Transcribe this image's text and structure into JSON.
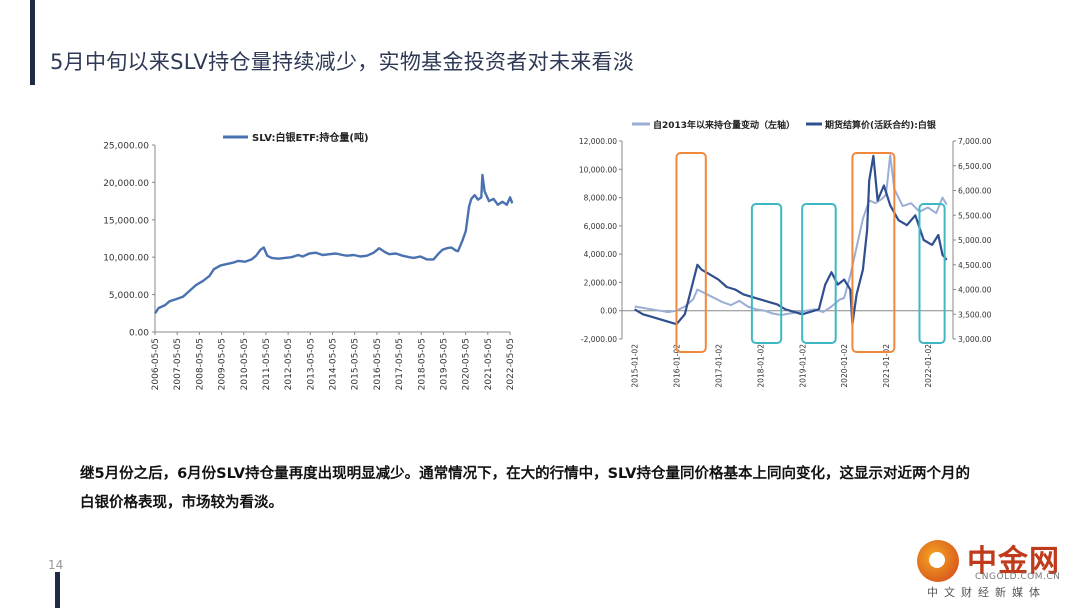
{
  "slide": {
    "title": "5月中旬以来SLV持仓量持续减少，实物基金投资者对未来看淡",
    "body": "继5月份之后，6月份SLV持仓量再度出现明显减少。通常情况下，在大的行情中，SLV持仓量同价格基本上同向变化，这显示对近两个月的白银价格表现，市场较为看淡。",
    "page_number": "14",
    "watermark": {
      "name": "中金网",
      "domain": "CNGOLD.COM.CN",
      "tagline": "中文财经新媒体"
    }
  },
  "colors": {
    "slv_line": "#4a72b0",
    "holding_change_line": "#9aaed6",
    "silver_price_line": "#2f4f8f",
    "orange_box": "#f0883e",
    "teal_box": "#3fb8c6",
    "accent": "#1f2a44"
  },
  "chart_data": [
    {
      "type": "line",
      "title": "",
      "legend": [
        "SLV:白银ETF:持仓量(吨)"
      ],
      "legend_position": "top",
      "xlabel": "",
      "ylabel": "",
      "ylim": [
        0,
        25000
      ],
      "y_ticks": [
        "0.00",
        "5,000.00",
        "10,000.00",
        "15,000.00",
        "20,000.00",
        "25,000.00"
      ],
      "x_ticks": [
        "2006-05-05",
        "2007-05-05",
        "2008-05-05",
        "2009-05-05",
        "2010-05-05",
        "2011-05-05",
        "2012-05-05",
        "2013-05-05",
        "2014-05-05",
        "2015-05-05",
        "2016-05-05",
        "2017-05-05",
        "2018-05-05",
        "2019-05-05",
        "2020-05-05",
        "2021-05-05",
        "2022-05-05"
      ],
      "grid": false,
      "series": [
        {
          "name": "SLV:白银ETF:持仓量(吨)",
          "x": [
            2006.35,
            2006.5,
            2006.8,
            2007.0,
            2007.3,
            2007.6,
            2007.9,
            2008.2,
            2008.5,
            2008.8,
            2009.0,
            2009.3,
            2009.6,
            2009.9,
            2010.1,
            2010.4,
            2010.7,
            2010.9,
            2011.1,
            2011.25,
            2011.4,
            2011.6,
            2011.9,
            2012.2,
            2012.5,
            2012.8,
            2013.0,
            2013.3,
            2013.6,
            2013.9,
            2014.2,
            2014.5,
            2014.8,
            2015.0,
            2015.3,
            2015.6,
            2015.9,
            2016.2,
            2016.45,
            2016.7,
            2016.9,
            2017.2,
            2017.5,
            2017.8,
            2018.0,
            2018.3,
            2018.6,
            2018.9,
            2019.1,
            2019.3,
            2019.5,
            2019.7,
            2019.9,
            2020.0,
            2020.2,
            2020.35,
            2020.5,
            2020.6,
            2020.75,
            2020.9,
            2021.05,
            2021.1,
            2021.2,
            2021.4,
            2021.6,
            2021.8,
            2022.0,
            2022.2,
            2022.35,
            2022.45
          ],
          "y": [
            2500,
            3200,
            3600,
            4100,
            4400,
            4700,
            5500,
            6300,
            6800,
            7500,
            8400,
            8900,
            9100,
            9300,
            9500,
            9400,
            9700,
            10200,
            11000,
            11300,
            10200,
            9900,
            9800,
            9900,
            10000,
            10300,
            10100,
            10500,
            10600,
            10300,
            10400,
            10500,
            10300,
            10200,
            10300,
            10100,
            10200,
            10600,
            11200,
            10700,
            10400,
            10500,
            10200,
            10000,
            9900,
            10100,
            9700,
            9700,
            10400,
            11000,
            11200,
            11300,
            10900,
            10800,
            12200,
            13500,
            16800,
            17800,
            18300,
            17700,
            18000,
            21000,
            18800,
            17500,
            17800,
            17000,
            17400,
            17000,
            18000,
            17200
          ]
        }
      ]
    },
    {
      "type": "line",
      "title": "",
      "legend": [
        "自2013年以来持仓量变动（左轴）",
        "期货结算价(活跃合约):白银"
      ],
      "legend_position": "top",
      "xlabel": "",
      "ylabel": "",
      "ylim_left": [
        -2000,
        12000
      ],
      "ylim_right": [
        3000,
        7000
      ],
      "y_ticks_left": [
        "-2,000.00",
        "0.00",
        "2,000.00",
        "4,000.00",
        "6,000.00",
        "8,000.00",
        "10,000.00",
        "12,000.00"
      ],
      "y_ticks_right": [
        "3,000.00",
        "3,500.00",
        "4,000.00",
        "4,500.00",
        "5,000.00",
        "5,500.00",
        "6,000.00",
        "6,500.00",
        "7,000.00"
      ],
      "x_ticks": [
        "2015-01-02",
        "2016-01-02",
        "2017-01-02",
        "2018-01-02",
        "2019-01-02",
        "2020-01-02",
        "2021-01-02",
        "2022-01-02"
      ],
      "grid": false,
      "series": [
        {
          "name": "自2013年以来持仓量变动（左轴）",
          "axis": "left",
          "x": [
            2015.0,
            2015.2,
            2015.4,
            2015.6,
            2015.8,
            2016.0,
            2016.2,
            2016.4,
            2016.5,
            2016.7,
            2016.9,
            2017.1,
            2017.3,
            2017.5,
            2017.7,
            2017.9,
            2018.1,
            2018.3,
            2018.5,
            2018.7,
            2018.9,
            2019.1,
            2019.3,
            2019.5,
            2019.7,
            2019.9,
            2020.0,
            2020.15,
            2020.3,
            2020.45,
            2020.6,
            2020.75,
            2020.9,
            2021.0,
            2021.1,
            2021.2,
            2021.4,
            2021.6,
            2021.8,
            2022.0,
            2022.2,
            2022.35,
            2022.45
          ],
          "y": [
            300,
            200,
            100,
            0,
            -100,
            0,
            300,
            800,
            1500,
            1200,
            900,
            600,
            400,
            700,
            300,
            100,
            0,
            -200,
            -300,
            -200,
            -100,
            0,
            100,
            -100,
            300,
            800,
            900,
            2500,
            4500,
            6500,
            7800,
            7600,
            7900,
            8200,
            11000,
            8600,
            7400,
            7600,
            7000,
            7300,
            6900,
            8000,
            7500
          ]
        },
        {
          "name": "期货结算价(活跃合约):白银",
          "axis": "right",
          "x": [
            2015.0,
            2015.2,
            2015.4,
            2015.6,
            2015.8,
            2016.0,
            2016.2,
            2016.35,
            2016.5,
            2016.6,
            2016.8,
            2017.0,
            2017.2,
            2017.4,
            2017.6,
            2017.8,
            2018.0,
            2018.2,
            2018.4,
            2018.6,
            2018.8,
            2019.0,
            2019.2,
            2019.4,
            2019.55,
            2019.7,
            2019.85,
            2020.0,
            2020.15,
            2020.2,
            2020.3,
            2020.45,
            2020.55,
            2020.6,
            2020.7,
            2020.8,
            2020.95,
            2021.1,
            2021.3,
            2021.5,
            2021.7,
            2021.9,
            2022.1,
            2022.25,
            2022.35,
            2022.45
          ],
          "y": [
            3600,
            3500,
            3450,
            3400,
            3350,
            3300,
            3500,
            4000,
            4500,
            4400,
            4300,
            4200,
            4050,
            4000,
            3900,
            3850,
            3800,
            3750,
            3700,
            3600,
            3550,
            3500,
            3550,
            3600,
            4100,
            4350,
            4100,
            4200,
            4000,
            3300,
            3900,
            4400,
            5200,
            6200,
            6700,
            5800,
            6100,
            5700,
            5400,
            5300,
            5500,
            5000,
            4900,
            5100,
            4700,
            4600
          ]
        }
      ],
      "highlight_boxes": [
        {
          "color": "orange",
          "x_range": [
            2016.0,
            2016.7
          ]
        },
        {
          "color": "teal",
          "x_range": [
            2017.8,
            2018.5
          ]
        },
        {
          "color": "teal",
          "x_range": [
            2019.0,
            2019.8
          ]
        },
        {
          "color": "orange",
          "x_range": [
            2020.2,
            2021.2
          ]
        },
        {
          "color": "teal",
          "x_range": [
            2021.8,
            2022.4
          ]
        }
      ]
    }
  ]
}
